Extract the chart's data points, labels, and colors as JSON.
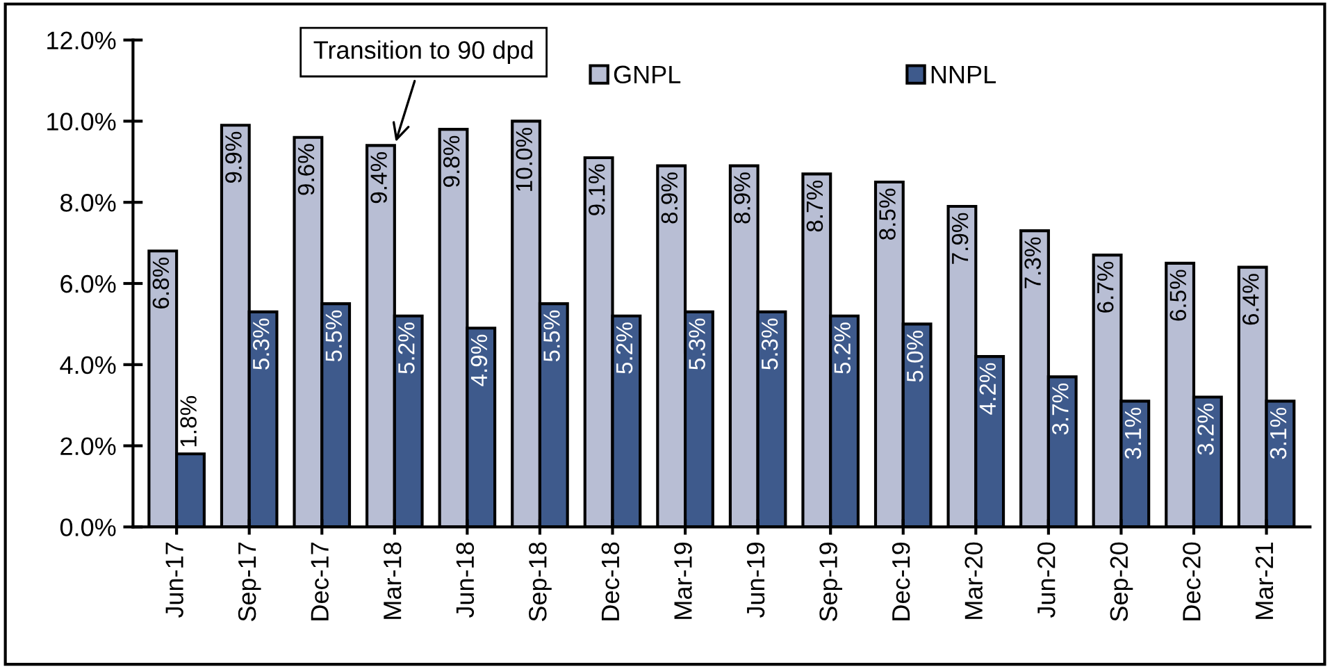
{
  "chart_data": {
    "type": "bar",
    "categories": [
      "Jun-17",
      "Sep-17",
      "Dec-17",
      "Mar-18",
      "Jun-18",
      "Sep-18",
      "Dec-18",
      "Mar-19",
      "Jun-19",
      "Sep-19",
      "Dec-19",
      "Mar-20",
      "Jun-20",
      "Sep-20",
      "Dec-20",
      "Mar-21"
    ],
    "series": [
      {
        "name": "GNPL",
        "color": "#b8bed4",
        "values": [
          6.8,
          9.9,
          9.6,
          9.4,
          9.8,
          10.0,
          9.1,
          8.9,
          8.9,
          8.7,
          8.5,
          7.9,
          7.3,
          6.7,
          6.5,
          6.4
        ],
        "value_labels": [
          "6.8%",
          "9.9%",
          "9.6%",
          "9.4%",
          "9.8%",
          "10.0%",
          "9.1%",
          "8.9%",
          "8.9%",
          "8.7%",
          "8.5%",
          "7.9%",
          "7.3%",
          "6.7%",
          "6.5%",
          "6.4%"
        ]
      },
      {
        "name": "NNPL",
        "color": "#3e5a8c",
        "values": [
          1.8,
          5.3,
          5.5,
          5.2,
          4.9,
          5.5,
          5.2,
          5.3,
          5.3,
          5.2,
          5.0,
          4.2,
          3.7,
          3.1,
          3.2,
          3.1
        ],
        "value_labels": [
          "1.8%",
          "5.3%",
          "5.5%",
          "5.2%",
          "4.9%",
          "5.5%",
          "5.2%",
          "5.3%",
          "5.3%",
          "5.2%",
          "5.0%",
          "4.2%",
          "3.7%",
          "3.1%",
          "3.2%",
          "3.1%"
        ]
      }
    ],
    "ylim": [
      0,
      12
    ],
    "yticks": [
      {
        "value": 0,
        "label": "0.0%"
      },
      {
        "value": 2,
        "label": "2.0%"
      },
      {
        "value": 4,
        "label": "4.0%"
      },
      {
        "value": 6,
        "label": "6.0%"
      },
      {
        "value": 8,
        "label": "8.0%"
      },
      {
        "value": 10,
        "label": "10.0%"
      },
      {
        "value": 12,
        "label": "12.0%"
      }
    ],
    "annotations": [
      {
        "text": "Transition to 90 dpd",
        "x": "Mar-18",
        "y": 9.4
      }
    ],
    "legend": "top right",
    "grid": false
  }
}
